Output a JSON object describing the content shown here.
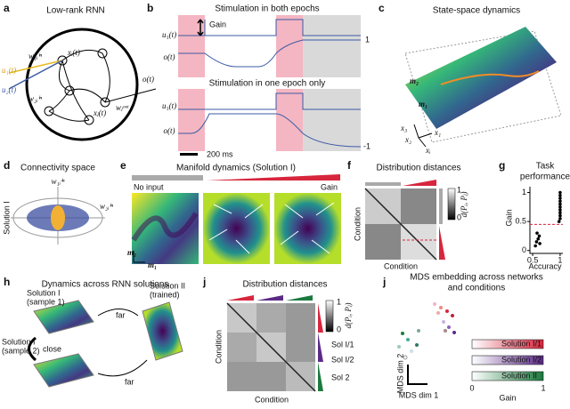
{
  "panels": {
    "a": {
      "letter": "a",
      "title": "Low-rank RNN",
      "labels": [
        "u₁(t)",
        "u₂(t)",
        "xᵢ(t)",
        "xⱼ(t)",
        "o(t)",
        "w₁ᵢⁱⁿ",
        "w₂ᵢⁱⁿ",
        "wⱼᵒᵘᵗ"
      ]
    },
    "b": {
      "letter": "b",
      "top_title": "Stimulation in both epochs",
      "gain": "Gain",
      "top_u": "u₁(t)",
      "top_o": "o(t)",
      "top_value": "1",
      "bottom_title": "Stimulation in one epoch only",
      "bottom_u": "u₁(t)",
      "bottom_o": "o(t)",
      "bottom_value": "-1",
      "scale": "200 ms"
    },
    "c": {
      "letter": "c",
      "title": "State-space dynamics",
      "labels": [
        "m₂",
        "m₁",
        "x₃",
        "x₂",
        "x₁",
        "xᵢ"
      ]
    },
    "d": {
      "letter": "d",
      "title": "Connectivity space",
      "solution": "Solution I",
      "labels": [
        "w₁ᵢⁱⁿ",
        "w₂ᵢⁱⁿ"
      ]
    },
    "e": {
      "letter": "e",
      "title": "Manifold dynamics (Solution I)",
      "no_input": "No input",
      "gain": "Gain",
      "labels": [
        "m₂",
        "m₁"
      ]
    },
    "f": {
      "letter": "f",
      "title": "Distribution distances",
      "xlabel": "Condition",
      "ylabel": "Condition",
      "cbar_label": "d(Pᵢ, Pⱼ)",
      "cbar_ticks": [
        "1",
        "0"
      ]
    },
    "g": {
      "letter": "g",
      "title": [
        "Task",
        "performance"
      ],
      "xlabel": "Accuracy",
      "ylabel": "Gain",
      "x": [
        0.55,
        0.57,
        0.6,
        0.62,
        0.58,
        0.63,
        0.98,
        1,
        1,
        1,
        1,
        1,
        1,
        1,
        1,
        1,
        1
      ],
      "y": [
        0.08,
        0.15,
        0.2,
        0.25,
        0.3,
        0.12,
        0.5,
        0.55,
        0.6,
        0.65,
        0.7,
        0.75,
        0.8,
        0.85,
        0.9,
        0.95,
        1.0
      ],
      "threshold": 0.45,
      "xlim": [
        0.45,
        1.05
      ],
      "ylim": [
        -0.05,
        1.1
      ],
      "xticks": [
        0.5,
        1
      ],
      "yticks": [
        0,
        0.5,
        1
      ]
    },
    "h": {
      "letter": "h",
      "title": "Dynamics across RNN solutions",
      "sol1a": [
        "Solution I",
        "(sample 1)"
      ],
      "sol2": [
        "Solution II",
        "(trained)"
      ],
      "sol1b": [
        "Solution I",
        "(sample 2)"
      ],
      "far1": "far",
      "close": "close",
      "far2": "far"
    },
    "i": {
      "letter": "j",
      "title": "Distribution distances",
      "groups": [
        "Sol I/1",
        "Sol I/2",
        "Sol 2"
      ],
      "xlabel": "Condition",
      "ylabel": "Condition",
      "cbar_label": "d(Pᵢ, Pⱼ)",
      "cbar_ticks": [
        "1",
        "0"
      ]
    },
    "j": {
      "letter": "j",
      "title": [
        "MDS embedding across networks",
        "and conditions"
      ],
      "xlabel": "MDS dim 1",
      "ylabel": "MDS dim 2",
      "legend": [
        "Solution I/1",
        "Solution I/2",
        "Solution II"
      ],
      "cbar_ticks": [
        "0",
        "1"
      ],
      "cbar_label": "Gain"
    }
  }
}
